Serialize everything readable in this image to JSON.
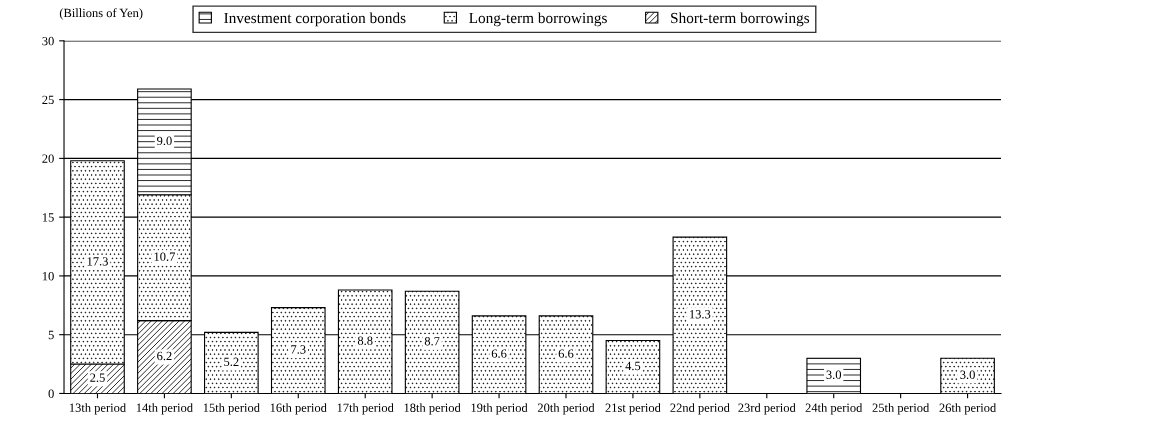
{
  "chart_data": {
    "type": "bar",
    "stacked": true,
    "ylabel": "(Billions of Yen)",
    "categories": [
      "13th period",
      "14th period",
      "15th period",
      "16th period",
      "17th period",
      "18th period",
      "19th period",
      "20th period",
      "21st period",
      "22nd period",
      "23rd period",
      "24th period",
      "25th period",
      "26th period"
    ],
    "series": [
      {
        "name": "Short-term borrowings",
        "color": "#000000",
        "values": [
          2.5,
          6.2,
          null,
          null,
          null,
          null,
          null,
          null,
          null,
          null,
          null,
          null,
          null,
          null
        ],
        "value_labels": [
          "2.5",
          "6.2",
          null,
          null,
          null,
          null,
          null,
          null,
          null,
          null,
          null,
          null,
          null,
          null
        ]
      },
      {
        "name": "Long-term borrowings",
        "color": "#000000",
        "values": [
          17.3,
          10.7,
          5.2,
          7.3,
          8.8,
          8.7,
          6.6,
          6.6,
          4.5,
          13.3,
          null,
          null,
          null,
          3.0
        ],
        "value_labels": [
          "17.3",
          "10.7",
          "5.2",
          "7.3",
          "8.8",
          "8.7",
          "6.6",
          "6.6",
          "4.5",
          "13.3",
          null,
          null,
          null,
          "3.0"
        ]
      },
      {
        "name": "Investment corporation bonds",
        "color": "#000000",
        "values": [
          null,
          9.0,
          null,
          null,
          null,
          null,
          null,
          null,
          null,
          null,
          null,
          3.0,
          null,
          null
        ],
        "value_labels": [
          null,
          "9.0",
          null,
          null,
          null,
          null,
          null,
          null,
          null,
          null,
          null,
          "3.0",
          null,
          null
        ]
      }
    ],
    "ylim": [
      0,
      30
    ],
    "yticks": [
      0,
      5,
      10,
      15,
      20,
      25,
      30
    ],
    "grid": "y",
    "legend": "top"
  }
}
